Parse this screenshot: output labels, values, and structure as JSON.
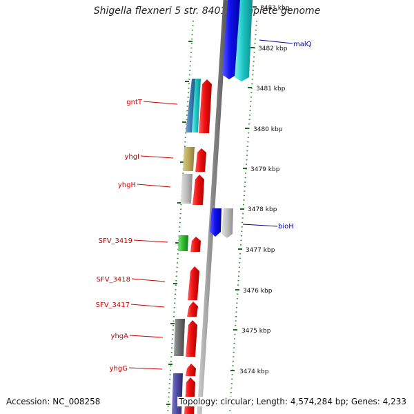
{
  "title": "Shigella flexneri 5 str. 8401, complete genome",
  "accession": "Accession: NC_008258",
  "topology": "Topology: circular; Length: 4,574,284 bp; Genes: 4,233",
  "scale_labels": [
    {
      "text": "3483 kbp",
      "pos": 3483
    },
    {
      "text": "3482 kbp",
      "pos": 3482
    },
    {
      "text": "3481 kbp",
      "pos": 3481
    },
    {
      "text": "3480 kbp",
      "pos": 3480
    },
    {
      "text": "3479 kbp",
      "pos": 3479
    },
    {
      "text": "3478 kbp",
      "pos": 3478
    },
    {
      "text": "3477 kbp",
      "pos": 3477
    },
    {
      "text": "3476 kbp",
      "pos": 3476
    },
    {
      "text": "3475 kbp",
      "pos": 3475
    },
    {
      "text": "3474 kbp",
      "pos": 3474
    }
  ],
  "gene_labels": [
    {
      "text": "malQ",
      "side": "right",
      "color": "#000099"
    },
    {
      "text": "gntT",
      "side": "left",
      "color": "#cc0000"
    },
    {
      "text": "yhgI",
      "side": "left",
      "color": "#cc0000"
    },
    {
      "text": "yhgH",
      "side": "left",
      "color": "#cc0000"
    },
    {
      "text": "bioH",
      "side": "right",
      "color": "#000099"
    },
    {
      "text": "SFV_3419",
      "side": "left",
      "color": "#cc0000"
    },
    {
      "text": "SFV_3418",
      "side": "left",
      "color": "#cc0000"
    },
    {
      "text": "SFV_3417",
      "side": "left",
      "color": "#cc0000"
    },
    {
      "text": "yhgA",
      "side": "left",
      "color": "#cc0000"
    },
    {
      "text": "yhgG",
      "side": "left",
      "color": "#cc0000"
    }
  ],
  "colors": {
    "forward_cds": "#ee1111",
    "reverse_cds": "#1111ee",
    "backbone": "#888888",
    "dots": "#2a8a2a",
    "ticks": "#1a6a1a"
  }
}
